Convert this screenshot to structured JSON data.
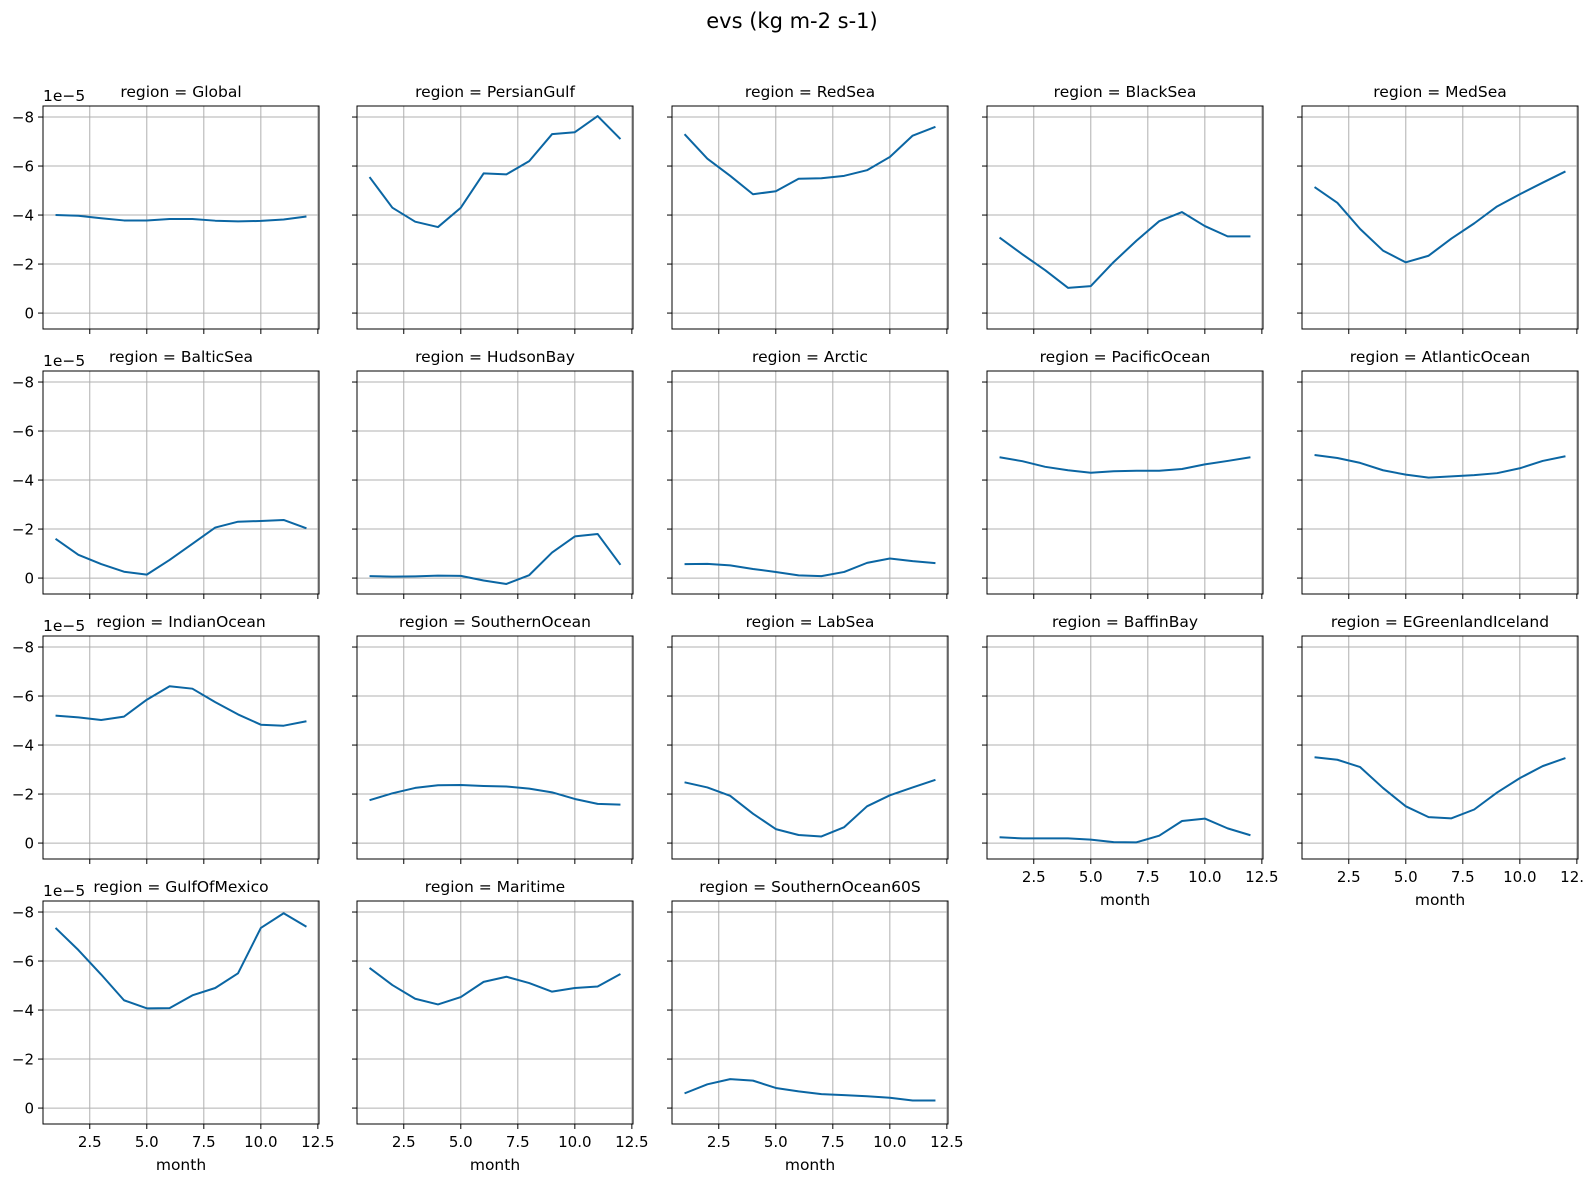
{
  "chart_data": {
    "type": "line",
    "title": "evs (kg m-2 s-1)",
    "xlabel": "month",
    "ylabel": "",
    "x": [
      1,
      2,
      3,
      4,
      5,
      6,
      7,
      8,
      9,
      10,
      11,
      12
    ],
    "xlim": [
      0.45,
      12.55
    ],
    "xticks": [
      2.5,
      5.0,
      7.5,
      10.0,
      12.5
    ],
    "xtick_labels": [
      "2.5",
      "5.0",
      "7.5",
      "10.0",
      "12.5"
    ],
    "ylim": [
      0.65,
      -8.45
    ],
    "yaxis_inverted": true,
    "yticks": [
      0,
      -2,
      -4,
      -6,
      -8
    ],
    "ytick_labels": [
      "0",
      "−2",
      "−4",
      "−6",
      "−8"
    ],
    "y_offset_label": "1e−5",
    "grid": true,
    "sharex": true,
    "sharey": true,
    "layout": {
      "columns": 5,
      "rows": 4
    },
    "line_color": "#0b66a3",
    "facets": [
      {
        "title": "region = Global",
        "values": [
          -4.0,
          -3.97,
          -3.87,
          -3.78,
          -3.78,
          -3.84,
          -3.84,
          -3.77,
          -3.74,
          -3.76,
          -3.82,
          -3.94
        ]
      },
      {
        "title": "region = PersianGulf",
        "values": [
          -5.55,
          -4.3,
          -3.73,
          -3.51,
          -4.3,
          -5.7,
          -5.66,
          -6.2,
          -7.3,
          -7.38,
          -8.04,
          -7.1
        ]
      },
      {
        "title": "region = RedSea",
        "values": [
          -7.3,
          -6.3,
          -5.6,
          -4.85,
          -4.97,
          -5.48,
          -5.5,
          -5.6,
          -5.83,
          -6.37,
          -7.24,
          -7.6
        ]
      },
      {
        "title": "region = BlackSea",
        "values": [
          -3.08,
          -2.4,
          -1.75,
          -1.03,
          -1.1,
          -2.08,
          -2.95,
          -3.75,
          -4.12,
          -3.55,
          -3.13,
          -3.13
        ]
      },
      {
        "title": "region = MedSea",
        "values": [
          -5.14,
          -4.5,
          -3.43,
          -2.55,
          -2.07,
          -2.34,
          -3.04,
          -3.66,
          -4.35,
          -4.85,
          -5.32,
          -5.78
        ]
      },
      {
        "title": "region = BalticSea",
        "values": [
          -1.6,
          -0.95,
          -0.57,
          -0.26,
          -0.14,
          -0.74,
          -1.4,
          -2.06,
          -2.3,
          -2.33,
          -2.37,
          -2.03
        ]
      },
      {
        "title": "region = HudsonBay",
        "values": [
          -0.08,
          -0.06,
          -0.07,
          -0.1,
          -0.09,
          0.1,
          0.24,
          -0.12,
          -1.04,
          -1.7,
          -1.8,
          -0.54
        ]
      },
      {
        "title": "region = Arctic",
        "values": [
          -0.57,
          -0.58,
          -0.52,
          -0.37,
          -0.25,
          -0.11,
          -0.08,
          -0.25,
          -0.62,
          -0.8,
          -0.69,
          -0.61
        ]
      },
      {
        "title": "region = PacificOcean",
        "values": [
          -4.93,
          -4.77,
          -4.54,
          -4.4,
          -4.3,
          -4.36,
          -4.38,
          -4.38,
          -4.45,
          -4.64,
          -4.78,
          -4.93
        ]
      },
      {
        "title": "region = AtlanticOcean",
        "values": [
          -5.02,
          -4.9,
          -4.7,
          -4.4,
          -4.22,
          -4.1,
          -4.15,
          -4.2,
          -4.28,
          -4.48,
          -4.78,
          -4.97
        ]
      },
      {
        "title": "region = IndianOcean",
        "values": [
          -5.2,
          -5.13,
          -5.02,
          -5.16,
          -5.85,
          -6.4,
          -6.3,
          -5.75,
          -5.25,
          -4.83,
          -4.79,
          -4.97
        ]
      },
      {
        "title": "region = SouthernOcean",
        "values": [
          -1.75,
          -2.03,
          -2.25,
          -2.36,
          -2.37,
          -2.33,
          -2.31,
          -2.22,
          -2.07,
          -1.8,
          -1.6,
          -1.57
        ]
      },
      {
        "title": "region = LabSea",
        "values": [
          -2.48,
          -2.27,
          -1.93,
          -1.2,
          -0.57,
          -0.33,
          -0.27,
          -0.65,
          -1.5,
          -1.95,
          -2.27,
          -2.58
        ]
      },
      {
        "title": "region = BaffinBay",
        "values": [
          -0.24,
          -0.19,
          -0.19,
          -0.19,
          -0.14,
          -0.04,
          -0.03,
          -0.3,
          -0.9,
          -1.0,
          -0.6,
          -0.32
        ]
      },
      {
        "title": "region = EGreenlandIceland",
        "values": [
          -3.5,
          -3.4,
          -3.1,
          -2.25,
          -1.5,
          -1.06,
          -1.01,
          -1.37,
          -2.06,
          -2.65,
          -3.14,
          -3.47
        ]
      },
      {
        "title": "region = GulfOfMexico",
        "values": [
          -7.35,
          -6.45,
          -5.45,
          -4.4,
          -4.07,
          -4.08,
          -4.6,
          -4.9,
          -5.5,
          -7.35,
          -7.95,
          -7.4
        ]
      },
      {
        "title": "region = Maritime",
        "values": [
          -5.72,
          -5.02,
          -4.46,
          -4.23,
          -4.53,
          -5.15,
          -5.36,
          -5.1,
          -4.75,
          -4.9,
          -4.96,
          -5.47
        ]
      },
      {
        "title": "region = SouthernOcean60S",
        "values": [
          -0.6,
          -0.97,
          -1.18,
          -1.12,
          -0.82,
          -0.68,
          -0.57,
          -0.53,
          -0.48,
          -0.42,
          -0.31,
          -0.31
        ]
      }
    ]
  }
}
